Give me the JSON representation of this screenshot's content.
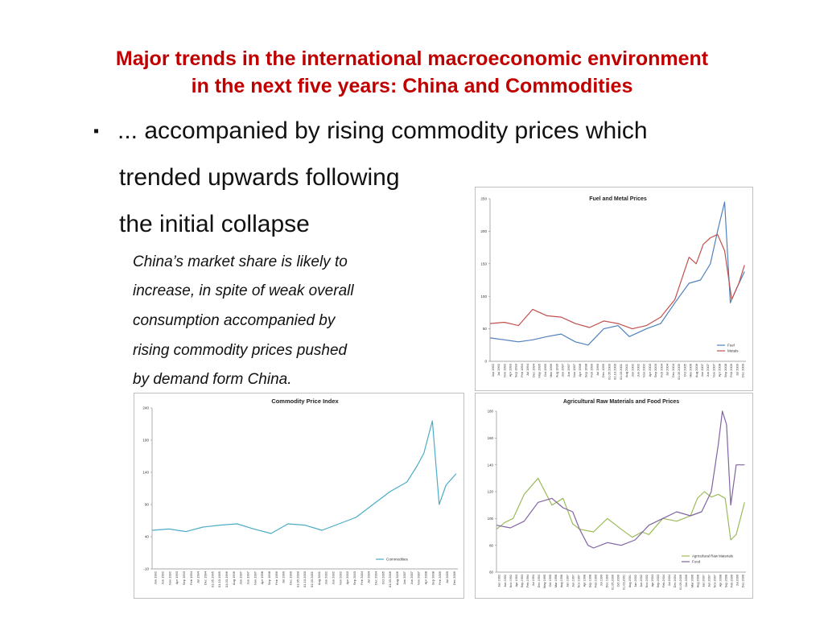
{
  "slide": {
    "title_line1": "Major trends in the international macroeconomic environment",
    "title_line2": "in the next five years: China and Commodities",
    "bullet_symbol": "▪",
    "bullet_line1": "... accompanied by rising commodity prices which",
    "bullet_line2": "trended upwards following",
    "bullet_line3": "the initial collapse",
    "note_lines": [
      "China’s market share is likely to",
      "increase, in spite of weak overall",
      "consumption accompanied by",
      "rising commodity prices pushed",
      "by demand form China."
    ]
  },
  "chart_data": [
    {
      "type": "line",
      "title": "Fuel and Metal Prices",
      "ylim": [
        0,
        250
      ],
      "yticks": [
        "0",
        "50",
        "100",
        "150",
        "200",
        "250"
      ],
      "x_range": [
        1992.0,
        2010.0
      ],
      "xticks": [
        "Jan 1992",
        "Jul 1992",
        "Nov 1992",
        "Apr 1993",
        "Sep 1993",
        "Feb 1994",
        "Jul 1994",
        "Dec 1994",
        "May 1995",
        "Oct 1995",
        "Mar 1996",
        "Aug 1996",
        "Jan 1997",
        "Jun 1997",
        "Nov 1997",
        "Apr 1998",
        "Sep 1998",
        "Feb 1999",
        "Jul 1999",
        "Dec 1999",
        "01.05.2000",
        "01.10.2000",
        "01.03.2001",
        "Aug 2001",
        "Jan 2002",
        "Jun 2002",
        "Nov 2002",
        "Apr 2003",
        "Sep 2003",
        "Feb 2004",
        "Jul 2004",
        "Dec 2004",
        "01.05.2005",
        "Oct 2005",
        "Mar 2006",
        "Aug 2006",
        "Jan 2007",
        "Jun 2007",
        "Nov 2007",
        "Apr 2008",
        "Sep 2008",
        "Feb 2009",
        "Jul 2009",
        "Dec 2009"
      ],
      "legend_position": "bottom-right",
      "grid": false,
      "series": [
        {
          "name": "Fuel",
          "color": "#4f81bd",
          "x": [
            1992.0,
            1993.0,
            1994.0,
            1995.0,
            1996.0,
            1997.0,
            1998.0,
            1998.9,
            2000.0,
            2001.0,
            2001.8,
            2003.0,
            2004.0,
            2005.0,
            2006.0,
            2006.8,
            2007.5,
            2008.0,
            2008.5,
            2008.9,
            2009.3,
            2009.9
          ],
          "y": [
            36,
            33,
            30,
            33,
            38,
            42,
            30,
            25,
            50,
            55,
            38,
            50,
            58,
            90,
            120,
            125,
            150,
            200,
            245,
            90,
            110,
            138
          ]
        },
        {
          "name": "Metals",
          "color": "#c0504d",
          "x": [
            1992.0,
            1993.0,
            1994.0,
            1995.0,
            1996.0,
            1997.0,
            1998.0,
            1999.0,
            2000.0,
            2001.0,
            2002.0,
            2003.0,
            2004.0,
            2005.0,
            2006.0,
            2006.5,
            2007.0,
            2007.5,
            2008.0,
            2008.5,
            2009.0,
            2009.5,
            2009.9
          ],
          "y": [
            58,
            60,
            55,
            80,
            70,
            68,
            58,
            52,
            62,
            58,
            50,
            55,
            68,
            95,
            160,
            150,
            180,
            190,
            195,
            170,
            95,
            120,
            148
          ]
        }
      ]
    },
    {
      "type": "line",
      "title": "Commodity Price Index",
      "ylim": [
        -10,
        240
      ],
      "yticks": [
        "-10",
        "40",
        "90",
        "140",
        "190",
        "240"
      ],
      "x_range": [
        1992.0,
        2010.0
      ],
      "xticks": [
        "Jan 1992",
        "Jun 1992",
        "Nov 1992",
        "Apr 1993",
        "Sep 1993",
        "Feb 1994",
        "Jul 1994",
        "Dec 1994",
        "01.05.1995",
        "01.10.1995",
        "01.03.1996",
        "Aug 1996",
        "Jan 1997",
        "Jun 1997",
        "Nov 1997",
        "Apr 1998",
        "Sep 1998",
        "Feb 1999",
        "Jul 1999",
        "Dec 1999",
        "01.05.2000",
        "01.10.2000",
        "01.03.2001",
        "Aug 2001",
        "Jan 2002",
        "Jun 2002",
        "Nov 2002",
        "Apr 2003",
        "Sep 2003",
        "Feb 2004",
        "Jul 2004",
        "Dec 2004",
        "Oct 2005",
        "01.03.2006",
        "Aug 2006",
        "Jan 2007",
        "Jun 2007",
        "Nov 2007",
        "Apr 2008",
        "Sep 2008",
        "Feb 2009",
        "Jul 2009",
        "Dec 2009"
      ],
      "legend_position": "bottom-right",
      "grid": false,
      "series": [
        {
          "name": "Commodities",
          "color": "#4bacc6",
          "x": [
            1992.0,
            1993.0,
            1994.0,
            1995.0,
            1996.0,
            1997.0,
            1998.0,
            1999.0,
            2000.0,
            2001.0,
            2002.0,
            2003.0,
            2004.0,
            2005.0,
            2006.0,
            2007.0,
            2007.6,
            2008.0,
            2008.5,
            2008.9,
            2009.3,
            2009.9
          ],
          "y": [
            50,
            52,
            48,
            55,
            58,
            60,
            52,
            45,
            60,
            58,
            50,
            60,
            70,
            90,
            110,
            125,
            150,
            170,
            220,
            90,
            120,
            138
          ]
        }
      ]
    },
    {
      "type": "line",
      "title": "Agricultural Raw Materials and Food Prices",
      "ylim": [
        60,
        180
      ],
      "yticks": [
        "60",
        "80",
        "100",
        "120",
        "140",
        "160",
        "180"
      ],
      "x_range": [
        1992.0,
        2010.0
      ],
      "xticks": [
        "Jan 1992",
        "Jun 1992",
        "Nov 1992",
        "Apr 1993",
        "Sep 1993",
        "Feb 1994",
        "Jul 1994",
        "Dec 1994",
        "May 1995",
        "Oct 1995",
        "Mar 1996",
        "Aug 1996",
        "Jan 1997",
        "Jun 1997",
        "Nov 1997",
        "Apr 1998",
        "Sep 1998",
        "Feb 1999",
        "Jul 1999",
        "Dec 1999",
        "01.05.2000",
        "Oct 2000",
        "01.03.2001",
        "Aug 2001",
        "Jan 2002",
        "Jun 2002",
        "Nov 2002",
        "Apr 2003",
        "Sep 2003",
        "Feb 2004",
        "Jul 2004",
        "Dec 2004",
        "01.05.2005",
        "Oct 2005",
        "Mar 2006",
        "Aug 2006",
        "Jan 2007",
        "Jun 2007",
        "Nov 2007",
        "Apr 2008",
        "Sep 2008",
        "Feb 2009",
        "Jul 2009",
        "Dec 2009"
      ],
      "legend_position": "bottom-right",
      "grid": false,
      "series": [
        {
          "name": "Agricultural Raw Materials",
          "color": "#9bbb59",
          "x": [
            1992.0,
            1992.6,
            1993.2,
            1994.0,
            1995.0,
            1996.0,
            1996.8,
            1997.5,
            1998.0,
            1999.0,
            2000.0,
            2001.0,
            2001.8,
            2002.5,
            2003.0,
            2004.0,
            2005.0,
            2006.0,
            2006.5,
            2007.0,
            2007.5,
            2008.0,
            2008.5,
            2008.9,
            2009.3,
            2009.9
          ],
          "y": [
            92,
            97,
            100,
            118,
            130,
            110,
            115,
            96,
            92,
            90,
            100,
            92,
            86,
            90,
            88,
            100,
            98,
            102,
            115,
            120,
            116,
            118,
            115,
            84,
            88,
            112
          ]
        },
        {
          "name": "Food",
          "color": "#8064a2",
          "x": [
            1992.0,
            1993.0,
            1994.0,
            1995.0,
            1996.0,
            1996.8,
            1997.5,
            1998.0,
            1998.6,
            1999.0,
            2000.0,
            2001.0,
            2002.0,
            2003.0,
            2004.0,
            2005.0,
            2006.0,
            2006.8,
            2007.5,
            2008.0,
            2008.3,
            2008.6,
            2008.9,
            2009.3,
            2009.9
          ],
          "y": [
            95,
            93,
            98,
            112,
            115,
            108,
            105,
            92,
            80,
            78,
            82,
            80,
            84,
            95,
            100,
            105,
            102,
            105,
            120,
            155,
            180,
            170,
            110,
            140,
            140
          ]
        }
      ]
    }
  ]
}
